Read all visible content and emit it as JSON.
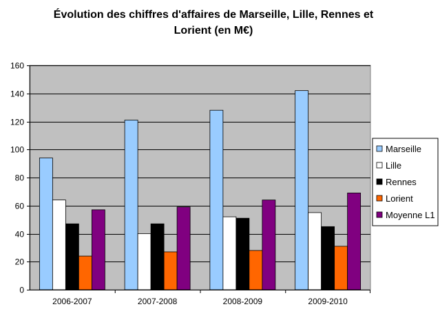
{
  "chart_data": {
    "type": "bar",
    "title_line1": "Évolution des chiffres d'affaires de Marseille, Lille, Rennes et",
    "title_line2": "Lorient (en M€)",
    "xlabel": "",
    "ylabel": "",
    "ylim": [
      0,
      160
    ],
    "yticks": [
      "0",
      "20",
      "40",
      "60",
      "80",
      "100",
      "120",
      "140",
      "160"
    ],
    "categories": [
      "2006-2007",
      "2007-2008",
      "2008-2009",
      "2009-2010"
    ],
    "series": [
      {
        "name": "Marseille",
        "color": "#99ccff",
        "values": [
          94,
          121,
          128,
          142
        ]
      },
      {
        "name": "Lille",
        "color": "#ffffff",
        "values": [
          64,
          40,
          52,
          55
        ]
      },
      {
        "name": "Rennes",
        "color": "#000000",
        "values": [
          47,
          47,
          51,
          45
        ]
      },
      {
        "name": "Lorient",
        "color": "#ff6600",
        "values": [
          24,
          27,
          28,
          31
        ]
      },
      {
        "name": "Moyenne L1",
        "color": "#800080",
        "values": [
          57,
          59,
          64,
          69
        ]
      }
    ],
    "plot_background": "#c0c0c0",
    "grid": "horizontal",
    "legend_position": "right"
  }
}
